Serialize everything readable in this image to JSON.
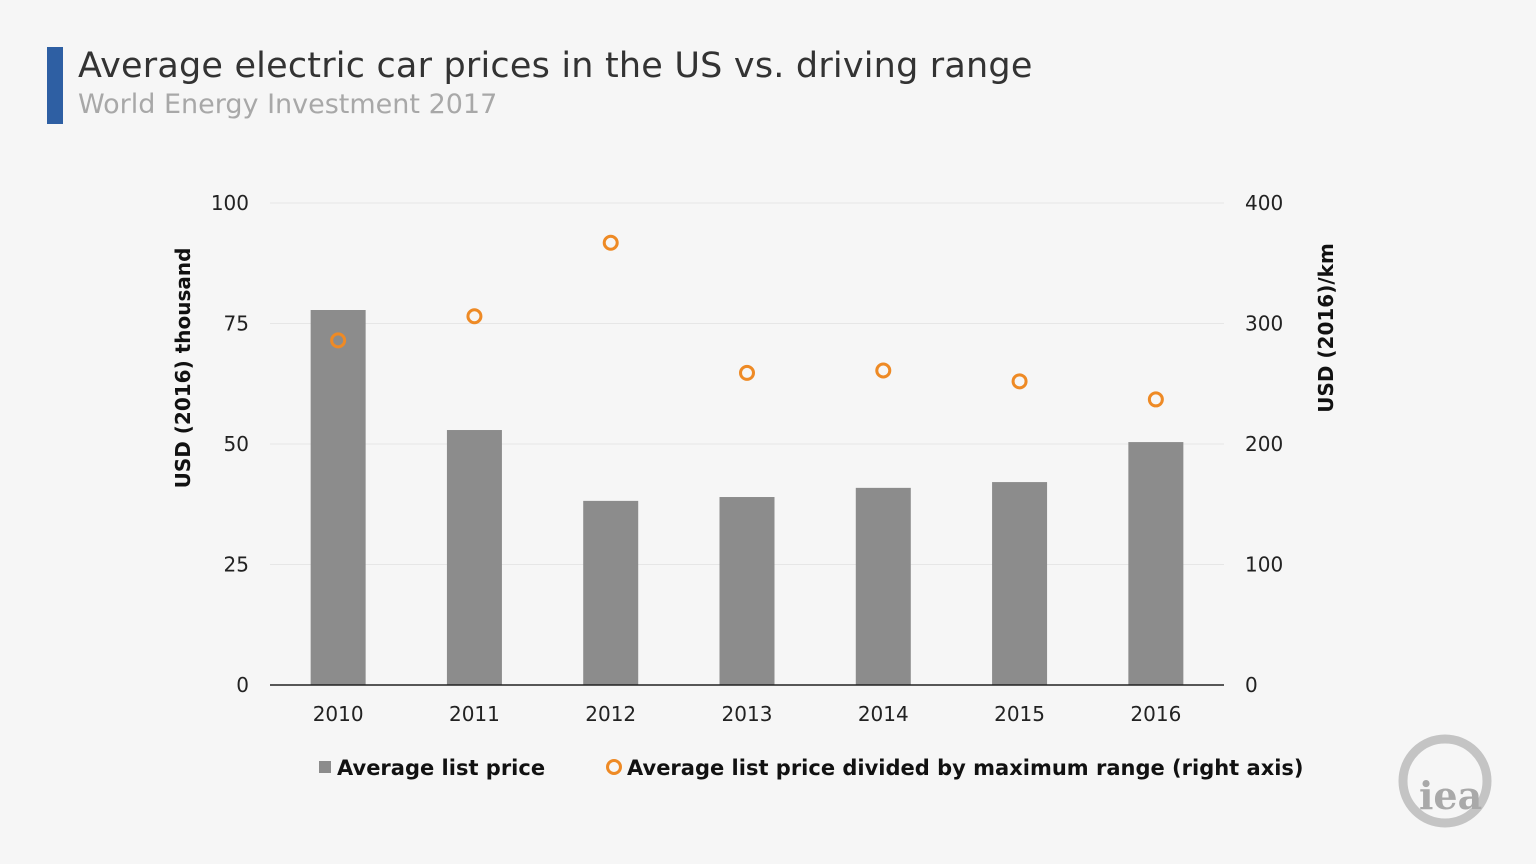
{
  "chart_data": {
    "type": "bar",
    "title": "Average electric car prices in the US vs. driving range",
    "subtitle": "World Energy Investment 2017",
    "categories": [
      "2010",
      "2011",
      "2012",
      "2013",
      "2014",
      "2015",
      "2016"
    ],
    "series": [
      {
        "name": "Average list price",
        "type": "bar",
        "axis": "left",
        "color": "#8c8c8c",
        "values": [
          77.8,
          52.9,
          38.2,
          39.0,
          40.9,
          42.1,
          50.4
        ]
      },
      {
        "name": "Average list price divided by maximum range (right axis)",
        "type": "scatter",
        "axis": "right",
        "color": "#ee8a25",
        "marker": "hollow-circle",
        "values": [
          286,
          306,
          367,
          259,
          261,
          252,
          237
        ]
      }
    ],
    "ylabel": "USD (2016) thousand",
    "y2label": "USD (2016)/km",
    "ylim": [
      0,
      100
    ],
    "y2lim": [
      0,
      400
    ],
    "yticks": [
      "0",
      "25",
      "50",
      "75",
      "100"
    ],
    "y2ticks": [
      "0",
      "100",
      "200",
      "300",
      "400"
    ],
    "grid": true,
    "legend_position": "bottom"
  },
  "branding": {
    "accent_color": "#2e5fa3",
    "logo_text": "iea"
  }
}
